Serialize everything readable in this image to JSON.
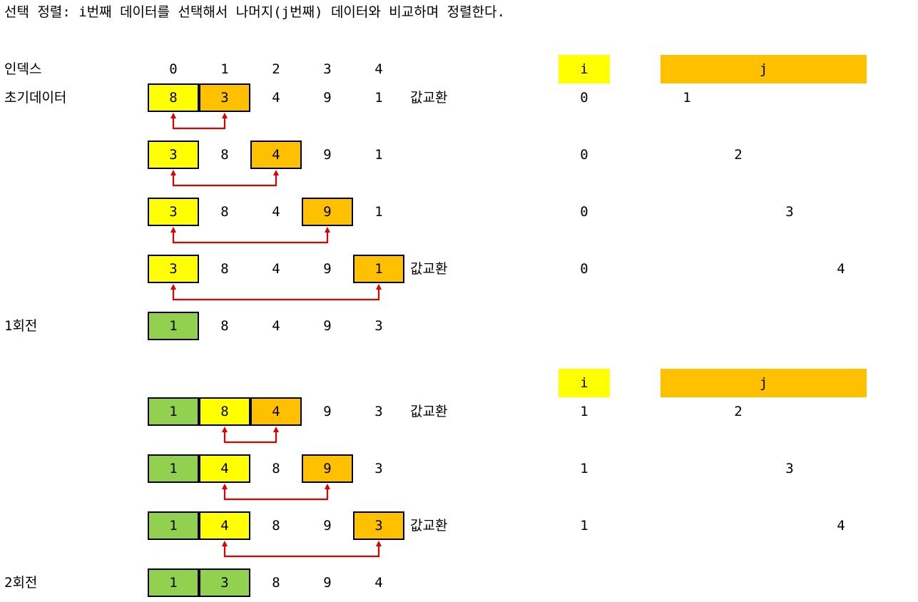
{
  "title": "선택 정렬: i번째 데이터를 선택해서 나머지(j번째) 데이터와 비교하며 정렬한다.",
  "labels": {
    "index": "인덱스",
    "initial": "초기데이터",
    "round1": "1회전",
    "round2": "2회전",
    "swap": "값교환",
    "i_header": "i",
    "j_header": "j"
  },
  "indices": [
    "0",
    "1",
    "2",
    "3",
    "4"
  ],
  "colors": {
    "i_selected": "#ffff00",
    "j_compare": "#ffc000",
    "sorted": "#92d050",
    "arrow": "#e00000"
  },
  "rows": [
    {
      "values": [
        "8",
        "3",
        "4",
        "9",
        "1"
      ],
      "cells": [
        "yellow",
        "orange",
        "",
        "",
        ""
      ],
      "swap": true,
      "i": "0",
      "j": "1",
      "arrow": [
        0,
        1
      ]
    },
    {
      "values": [
        "3",
        "8",
        "4",
        "9",
        "1"
      ],
      "cells": [
        "yellow",
        "",
        "orange",
        "",
        ""
      ],
      "swap": false,
      "i": "0",
      "j": "2",
      "arrow": [
        0,
        2
      ]
    },
    {
      "values": [
        "3",
        "8",
        "4",
        "9",
        "1"
      ],
      "cells": [
        "yellow",
        "",
        "",
        "orange",
        ""
      ],
      "swap": false,
      "i": "0",
      "j": "3",
      "arrow": [
        0,
        3
      ]
    },
    {
      "values": [
        "3",
        "8",
        "4",
        "9",
        "1"
      ],
      "cells": [
        "yellow",
        "",
        "",
        "",
        "orange"
      ],
      "swap": true,
      "i": "0",
      "j": "4",
      "arrow": [
        0,
        4
      ]
    },
    {
      "values": [
        "1",
        "8",
        "4",
        "9",
        "3"
      ],
      "cells": [
        "green",
        "",
        "",
        "",
        ""
      ],
      "swap": false,
      "i": "",
      "j": "",
      "arrow": null,
      "label": "round1"
    },
    {
      "values": [
        "1",
        "8",
        "4",
        "9",
        "3"
      ],
      "cells": [
        "green",
        "yellow",
        "orange",
        "",
        ""
      ],
      "swap": true,
      "i": "1",
      "j": "2",
      "arrow": [
        1,
        2
      ]
    },
    {
      "values": [
        "1",
        "4",
        "8",
        "9",
        "3"
      ],
      "cells": [
        "green",
        "yellow",
        "",
        "orange",
        ""
      ],
      "swap": false,
      "i": "1",
      "j": "3",
      "arrow": [
        1,
        3
      ]
    },
    {
      "values": [
        "1",
        "4",
        "8",
        "9",
        "3"
      ],
      "cells": [
        "green",
        "yellow",
        "",
        "",
        "orange"
      ],
      "swap": true,
      "i": "1",
      "j": "4",
      "arrow": [
        1,
        4
      ]
    },
    {
      "values": [
        "1",
        "3",
        "8",
        "9",
        "4"
      ],
      "cells": [
        "green",
        "green",
        "",
        "",
        ""
      ],
      "swap": false,
      "i": "",
      "j": "",
      "arrow": null,
      "label": "round2"
    }
  ]
}
